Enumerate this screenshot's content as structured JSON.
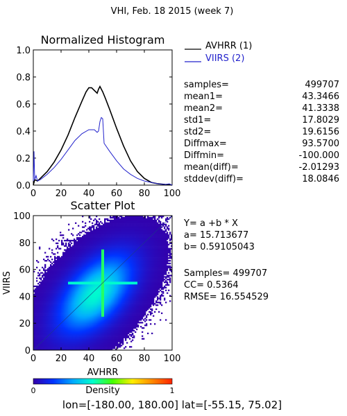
{
  "page_title": "VHI,  Feb. 18 2015 (week 7)",
  "histogram": {
    "title": "Normalized Histogram",
    "legend": [
      {
        "label": "AVHRR (1)",
        "color": "#000000"
      },
      {
        "label": "VIIRS (2)",
        "color": "#2222cc"
      }
    ],
    "stats": [
      {
        "label": "samples=",
        "value": "499707"
      },
      {
        "label": "mean1=",
        "value": "43.3466"
      },
      {
        "label": "mean2=",
        "value": "41.3338"
      },
      {
        "label": "std1=",
        "value": "17.8029"
      },
      {
        "label": "std2=",
        "value": "19.6156"
      },
      {
        "label": "Diffmax=",
        "value": "93.5700"
      },
      {
        "label": "Diffmin=",
        "value": "-100.000"
      },
      {
        "label": "mean(diff)=",
        "value": "-2.01293"
      },
      {
        "label": "stddev(diff)=",
        "value": "18.0846"
      }
    ]
  },
  "scatter": {
    "title": "Scatter Plot",
    "xlabel": "AVHRR",
    "ylabel": "VIIRS",
    "regression": [
      {
        "text": "Y= a +b * X"
      },
      {
        "text": "a= 15.713677"
      },
      {
        "text": "b= 0.59105043"
      }
    ],
    "metrics": [
      {
        "text": "Samples= 499707"
      },
      {
        "text": "CC=  0.5364"
      },
      {
        "text": "RMSE= 16.554529"
      }
    ]
  },
  "colorbar": {
    "label": "Density",
    "min_label": "0",
    "max_label": "1",
    "colors": [
      "#3300aa",
      "#0033ff",
      "#00aaff",
      "#00ffcc",
      "#44ff00",
      "#ffee00",
      "#ff8800",
      "#ff2200"
    ]
  },
  "footer": {
    "lon_label": "lon=",
    "lon_range": "[-180.00, 180.00]",
    "lat_label": "lat=",
    "lat_range": "[-55.15, 75.02]"
  },
  "chart_data": [
    {
      "type": "line",
      "title": "Normalized Histogram",
      "xlim": [
        0,
        100
      ],
      "ylim": [
        0,
        1.0
      ],
      "x_ticks": [
        0,
        20,
        40,
        60,
        80,
        100
      ],
      "y_ticks": [
        0.0,
        0.2,
        0.4,
        0.6,
        0.8,
        1.0
      ],
      "x_tick_labels": [
        "0",
        "20",
        "40",
        "60",
        "80",
        "100"
      ],
      "y_tick_labels": [
        "0.0",
        "0.2",
        "0.4",
        "0.6",
        "0.8",
        "1.0"
      ],
      "series": [
        {
          "name": "AVHRR (1)",
          "color": "#000000",
          "x": [
            0,
            1,
            3,
            5,
            10,
            15,
            20,
            25,
            30,
            35,
            38,
            40,
            42,
            44,
            46,
            47,
            48,
            49,
            50,
            52,
            55,
            60,
            65,
            70,
            75,
            80,
            85,
            90,
            95,
            98,
            100
          ],
          "y": [
            0.0,
            0.04,
            0.03,
            0.05,
            0.1,
            0.17,
            0.26,
            0.37,
            0.5,
            0.62,
            0.69,
            0.72,
            0.72,
            0.7,
            0.68,
            0.71,
            0.73,
            0.71,
            0.69,
            0.64,
            0.56,
            0.42,
            0.29,
            0.18,
            0.1,
            0.05,
            0.02,
            0.01,
            0.005,
            0.003,
            0.0
          ]
        },
        {
          "name": "VIIRS (2)",
          "color": "#2222cc",
          "x": [
            0,
            0.5,
            1,
            2,
            3,
            5,
            10,
            15,
            20,
            25,
            30,
            35,
            40,
            44,
            46,
            47,
            48,
            49,
            50,
            51,
            55,
            60,
            65,
            70,
            75,
            80,
            85,
            90,
            95,
            98,
            100
          ],
          "y": [
            0.03,
            0.25,
            0.04,
            0.07,
            0.03,
            0.04,
            0.08,
            0.13,
            0.19,
            0.26,
            0.33,
            0.38,
            0.41,
            0.41,
            0.39,
            0.4,
            0.47,
            0.5,
            0.49,
            0.31,
            0.25,
            0.18,
            0.12,
            0.08,
            0.05,
            0.03,
            0.02,
            0.01,
            0.005,
            0.01,
            0.0
          ]
        }
      ]
    },
    {
      "type": "scatter",
      "title": "Scatter Plot",
      "xlabel": "AVHRR",
      "ylabel": "VIIRS",
      "xlim": [
        0,
        100
      ],
      "ylim": [
        0,
        100
      ],
      "x_ticks": [
        0,
        20,
        40,
        60,
        80,
        100
      ],
      "y_ticks": [
        0,
        20,
        40,
        60,
        80,
        100
      ],
      "x_tick_labels": [
        "0",
        "20",
        "40",
        "60",
        "80",
        "100"
      ],
      "y_tick_labels": [
        "0",
        "20",
        "40",
        "60",
        "80",
        "100"
      ],
      "samples": 499707,
      "regression": {
        "a": 15.713677,
        "b": 0.59105043
      },
      "density_center": [
        45,
        42
      ],
      "density_spread": [
        17.8,
        19.6
      ],
      "correlation": 0.5364,
      "bright_cross": {
        "x": 50,
        "y": 50
      }
    }
  ]
}
